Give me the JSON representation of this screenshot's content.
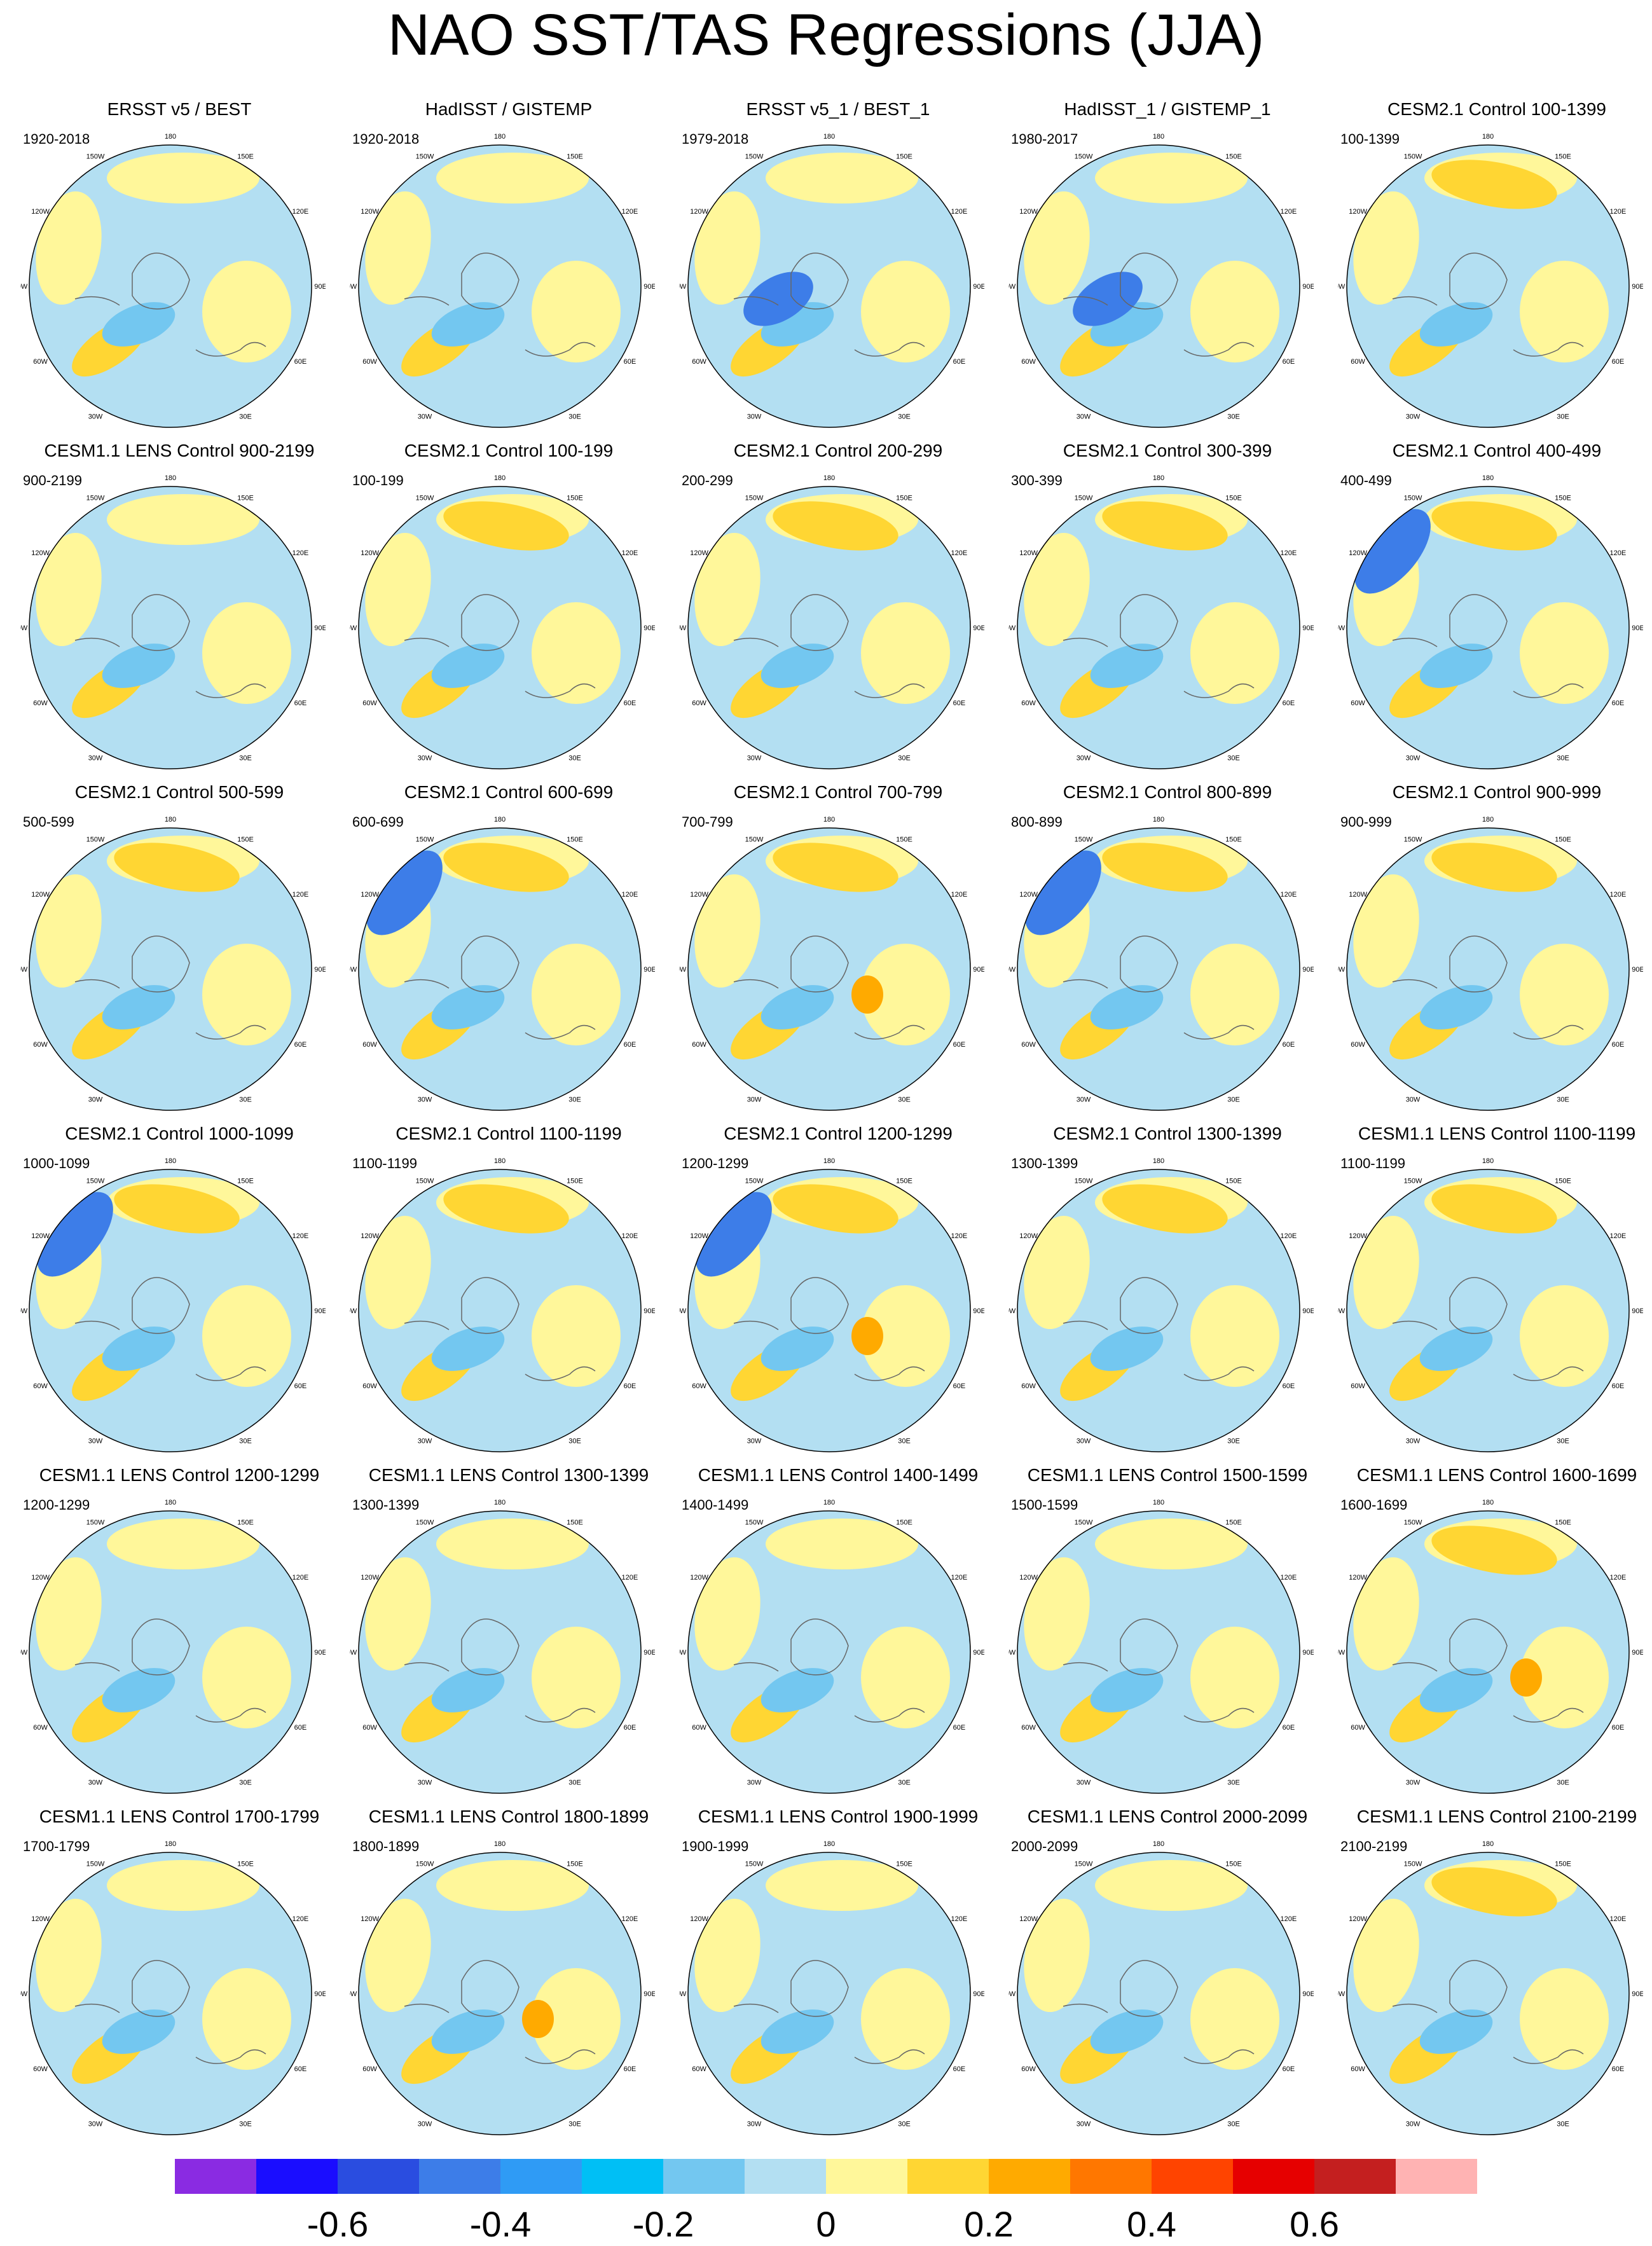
{
  "title": "NAO SST/TAS Regressions (JJA)",
  "panels": [
    {
      "title": "ERSST v5 / BEST",
      "years": "1920-2018"
    },
    {
      "title": "HadISST / GISTEMP",
      "years": "1920-2018"
    },
    {
      "title": "ERSST v5_1 / BEST_1",
      "years": "1979-2018"
    },
    {
      "title": "HadISST_1 / GISTEMP_1",
      "years": "1980-2017"
    },
    {
      "title": "CESM2.1 Control 100-1399",
      "years": "100-1399"
    },
    {
      "title": "CESM1.1 LENS Control 900-2199",
      "years": "900-2199"
    },
    {
      "title": "CESM2.1 Control 100-199",
      "years": "100-199"
    },
    {
      "title": "CESM2.1 Control 200-299",
      "years": "200-299"
    },
    {
      "title": "CESM2.1 Control 300-399",
      "years": "300-399"
    },
    {
      "title": "CESM2.1 Control 400-499",
      "years": "400-499"
    },
    {
      "title": "CESM2.1 Control 500-599",
      "years": "500-599"
    },
    {
      "title": "CESM2.1 Control 600-699",
      "years": "600-699"
    },
    {
      "title": "CESM2.1 Control 700-799",
      "years": "700-799"
    },
    {
      "title": "CESM2.1 Control 800-899",
      "years": "800-899"
    },
    {
      "title": "CESM2.1 Control 900-999",
      "years": "900-999"
    },
    {
      "title": "CESM2.1 Control 1000-1099",
      "years": "1000-1099"
    },
    {
      "title": "CESM2.1 Control 1100-1199",
      "years": "1100-1199"
    },
    {
      "title": "CESM2.1 Control 1200-1299",
      "years": "1200-1299"
    },
    {
      "title": "CESM2.1 Control 1300-1399",
      "years": "1300-1399"
    },
    {
      "title": "CESM1.1 LENS Control 1100-1199",
      "years": "1100-1199"
    },
    {
      "title": "CESM1.1 LENS Control 1200-1299",
      "years": "1200-1299"
    },
    {
      "title": "CESM1.1 LENS Control 1300-1399",
      "years": "1300-1399"
    },
    {
      "title": "CESM1.1 LENS Control 1400-1499",
      "years": "1400-1499"
    },
    {
      "title": "CESM1.1 LENS Control 1500-1599",
      "years": "1500-1599"
    },
    {
      "title": "CESM1.1 LENS Control 1600-1699",
      "years": "1600-1699"
    },
    {
      "title": "CESM1.1 LENS Control 1700-1799",
      "years": "1700-1799"
    },
    {
      "title": "CESM1.1 LENS Control 1800-1899",
      "years": "1800-1899"
    },
    {
      "title": "CESM1.1 LENS Control 1900-1999",
      "years": "1900-1999"
    },
    {
      "title": "CESM1.1 LENS Control 2000-2099",
      "years": "2000-2099"
    },
    {
      "title": "CESM1.1 LENS Control 2100-2199",
      "years": "2100-2199"
    }
  ],
  "longitude_labels": [
    "180",
    "150E",
    "120E",
    "90E",
    "60E",
    "30E",
    "0",
    "30W",
    "60W",
    "90W",
    "120W",
    "150W"
  ],
  "colorbar": {
    "colors": [
      "#8a2be2",
      "#1a0dff",
      "#2a4de0",
      "#3d7de8",
      "#2f9bf5",
      "#00bff5",
      "#73c7f0",
      "#b3dff2",
      "#fff79a",
      "#ffd633",
      "#ffaa00",
      "#ff7700",
      "#ff4400",
      "#e60000",
      "#c41f1f",
      "#ffb3b3"
    ],
    "tick_labels": [
      "-0.6",
      "-0.4",
      "-0.2",
      "0",
      "0.2",
      "0.4",
      "0.6"
    ]
  },
  "palette": {
    "ocean_neg": "#b3dff2",
    "pos_weak": "#fff79a",
    "pos_mid": "#ffd633",
    "pos_strong": "#ffaa00",
    "neg_mid": "#73c7f0",
    "neg_strong": "#3d7de8"
  }
}
